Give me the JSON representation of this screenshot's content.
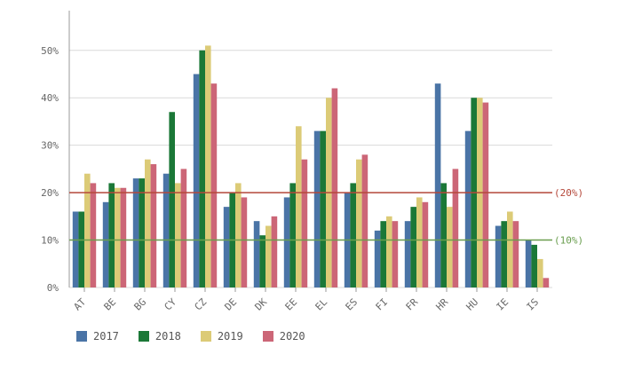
{
  "chart_data": {
    "type": "bar",
    "categories": [
      "AT",
      "BE",
      "BG",
      "CY",
      "CZ",
      "DE",
      "DK",
      "EE",
      "EL",
      "ES",
      "FI",
      "FR",
      "HR",
      "HU",
      "IE",
      "IS"
    ],
    "series": [
      {
        "name": "2017",
        "color": "#4a74a6",
        "values": [
          16,
          18,
          23,
          24,
          45,
          17,
          14,
          19,
          33,
          20,
          12,
          14,
          43,
          33,
          13,
          10
        ]
      },
      {
        "name": "2018",
        "color": "#1b7837",
        "values": [
          16,
          22,
          23,
          37,
          50,
          20,
          11,
          22,
          33,
          22,
          14,
          17,
          22,
          40,
          14,
          9
        ]
      },
      {
        "name": "2019",
        "color": "#dccb77",
        "values": [
          24,
          21,
          27,
          22,
          51,
          22,
          13,
          34,
          40,
          27,
          15,
          19,
          17,
          40,
          16,
          6
        ]
      },
      {
        "name": "2020",
        "color": "#cc6677",
        "values": [
          22,
          21,
          26,
          25,
          43,
          19,
          15,
          27,
          42,
          28,
          14,
          18,
          25,
          39,
          14,
          2
        ]
      }
    ],
    "yticks": [
      "0%",
      "10%",
      "20%",
      "30%",
      "40%",
      "50%"
    ],
    "ylim": [
      0,
      58
    ],
    "reference_lines": [
      {
        "value": 20,
        "label": "(20%)",
        "color": "#b5483a"
      },
      {
        "value": 10,
        "label": "(10%)",
        "color": "#6a9e4f"
      }
    ],
    "grid": true,
    "legend_position": "bottom-left",
    "title": "",
    "xlabel": "",
    "ylabel": ""
  }
}
